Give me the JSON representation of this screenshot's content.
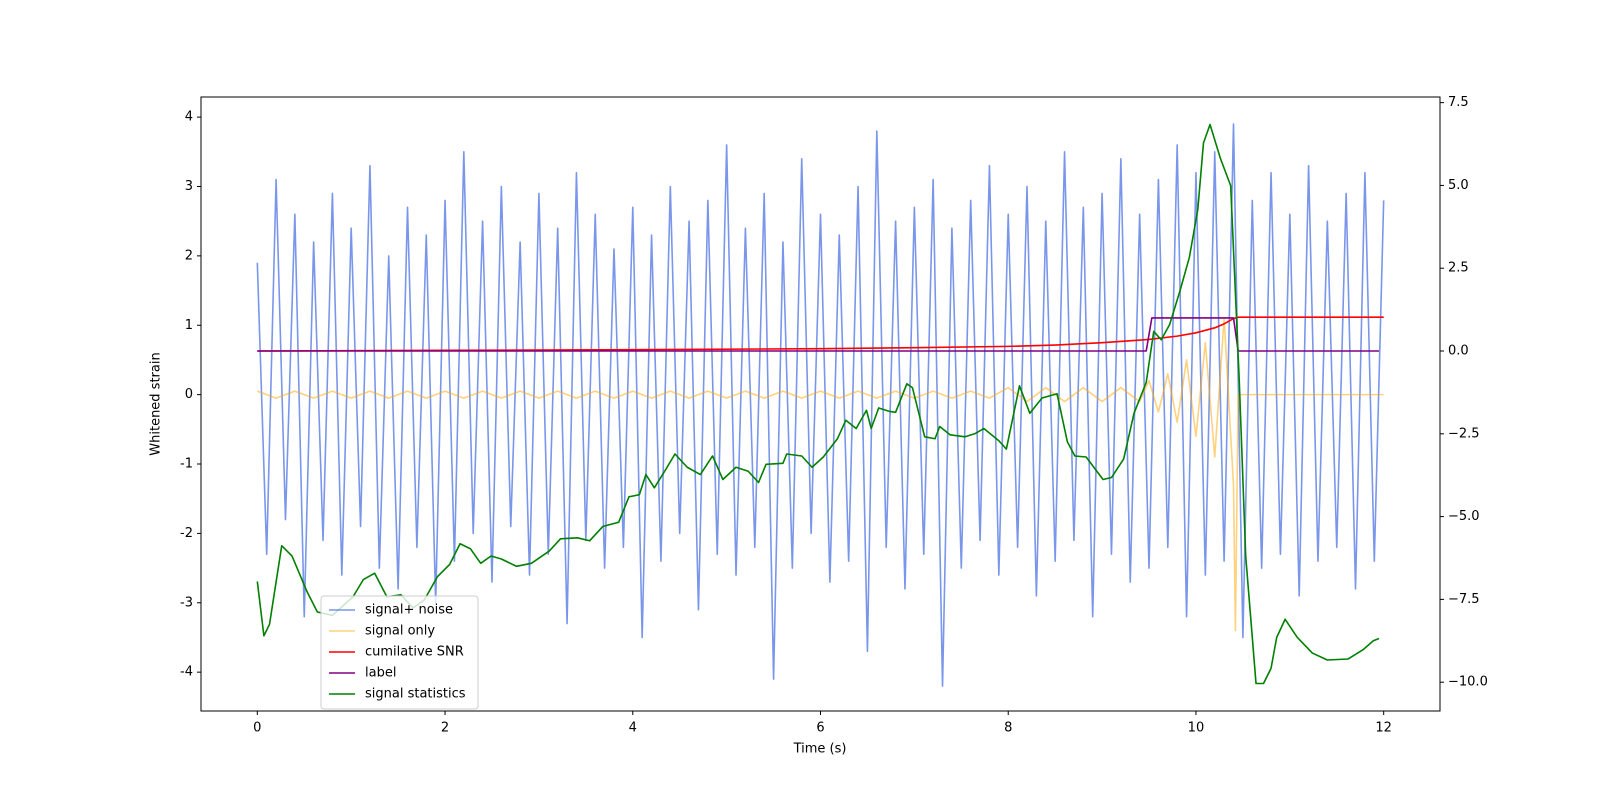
{
  "chart_data": {
    "type": "line",
    "xlabel": "Time (s)",
    "ylabel": "Whitened strain",
    "xlim": [
      -0.6,
      12.6
    ],
    "xticks": [
      0,
      2,
      4,
      6,
      8,
      10,
      12
    ],
    "ylim": [
      -4.56,
      4.29
    ],
    "yticks": [
      -4,
      -3,
      -2,
      -1,
      0,
      1,
      2,
      3,
      4
    ],
    "y2lim": [
      -10.87,
      7.67
    ],
    "y2ticks": [
      {
        "value": -10,
        "label": "−10.0"
      },
      {
        "value": -7.5,
        "label": "−7.5"
      },
      {
        "value": -5,
        "label": "−5.0"
      },
      {
        "value": -2.5,
        "label": "−2.5"
      },
      {
        "value": 0,
        "label": "0.0"
      },
      {
        "value": 2.5,
        "label": "2.5"
      },
      {
        "value": 5,
        "label": "5.0"
      },
      {
        "value": 7.5,
        "label": "7.5"
      }
    ],
    "legend": "lower left",
    "series": [
      {
        "name": "signal+ noise",
        "color": "#4169e1",
        "opacity": 0.7,
        "x": [
          0,
          0.1,
          0.2,
          0.3,
          0.4,
          0.5,
          0.6,
          0.7,
          0.8,
          0.9,
          1,
          1.1,
          1.2,
          1.3,
          1.4,
          1.5,
          1.6,
          1.7,
          1.8,
          1.9,
          2,
          2.1,
          2.2,
          2.3,
          2.4,
          2.5,
          2.6,
          2.7,
          2.8,
          2.9,
          3,
          3.1,
          3.2,
          3.3,
          3.4,
          3.5,
          3.6,
          3.7,
          3.8,
          3.9,
          4,
          4.1,
          4.2,
          4.3,
          4.4,
          4.5,
          4.6,
          4.7,
          4.8,
          4.9,
          5,
          5.1,
          5.2,
          5.3,
          5.4,
          5.5,
          5.6,
          5.7,
          5.8,
          5.9,
          6,
          6.1,
          6.2,
          6.3,
          6.4,
          6.5,
          6.6,
          6.7,
          6.8,
          6.9,
          7,
          7.1,
          7.2,
          7.3,
          7.4,
          7.5,
          7.6,
          7.7,
          7.8,
          7.9,
          8,
          8.1,
          8.2,
          8.3,
          8.4,
          8.5,
          8.6,
          8.7,
          8.8,
          8.9,
          9,
          9.1,
          9.2,
          9.3,
          9.4,
          9.5,
          9.6,
          9.7,
          9.8,
          9.9,
          10,
          10.1,
          10.2,
          10.3,
          10.4,
          10.5,
          10.6,
          10.7,
          10.8,
          10.9,
          11,
          11.1,
          11.2,
          11.3,
          11.4,
          11.5,
          11.6,
          11.7,
          11.8,
          11.9,
          12
        ],
        "values": [
          1.9,
          -2.3,
          3.1,
          -1.8,
          2.6,
          -3.2,
          2.2,
          -2.1,
          2.9,
          -2.6,
          2.4,
          -1.9,
          3.3,
          -2.5,
          2.0,
          -2.8,
          2.7,
          -2.2,
          2.3,
          -3.0,
          2.8,
          -2.4,
          3.5,
          -2.0,
          2.5,
          -2.7,
          3.0,
          -1.9,
          2.2,
          -2.6,
          2.9,
          -2.3,
          2.4,
          -3.3,
          3.2,
          -2.1,
          2.6,
          -2.5,
          2.1,
          -2.2,
          2.7,
          -3.5,
          2.3,
          -2.4,
          3.0,
          -2.0,
          2.5,
          -3.1,
          2.8,
          -2.3,
          3.6,
          -2.6,
          2.4,
          -2.2,
          2.9,
          -4.1,
          2.2,
          -2.5,
          3.4,
          -2.0,
          2.6,
          -2.7,
          2.3,
          -2.4,
          3.0,
          -3.7,
          3.8,
          -2.2,
          2.5,
          -2.8,
          2.7,
          -2.3,
          3.1,
          -4.2,
          2.4,
          -2.5,
          2.8,
          -2.1,
          3.3,
          -2.6,
          2.6,
          -2.2,
          3.0,
          -2.9,
          2.5,
          -2.4,
          3.5,
          -2.1,
          2.7,
          -3.2,
          2.9,
          -2.3,
          3.4,
          -2.7,
          2.6,
          -2.5,
          3.1,
          -2.2,
          3.6,
          -3.2,
          3.2,
          -2.6,
          3.5,
          -2.4,
          3.9,
          -3.5,
          2.8,
          -2.5,
          3.2,
          -2.3,
          2.6,
          -2.9,
          3.3,
          -2.4,
          2.5,
          -2.2,
          2.9,
          -2.8,
          3.2,
          -2.4,
          2.8
        ]
      },
      {
        "name": "signal only",
        "color": "#ffa500",
        "opacity": 0.5,
        "x": [
          0,
          0.2,
          0.4,
          0.6,
          0.8,
          1,
          1.2,
          1.4,
          1.6,
          1.8,
          2,
          2.2,
          2.4,
          2.6,
          2.8,
          3,
          3.2,
          3.4,
          3.6,
          3.8,
          4,
          4.2,
          4.4,
          4.6,
          4.8,
          5,
          5.2,
          5.4,
          5.6,
          5.8,
          6,
          6.2,
          6.4,
          6.6,
          6.8,
          7,
          7.2,
          7.4,
          7.6,
          7.8,
          8,
          8.2,
          8.4,
          8.6,
          8.8,
          9,
          9.2,
          9.4,
          9.5,
          9.6,
          9.7,
          9.8,
          9.9,
          10,
          10.1,
          10.2,
          10.3,
          10.4,
          10.42,
          10.45,
          12
        ],
        "values": [
          0.05,
          -0.05,
          0.05,
          -0.05,
          0.05,
          -0.05,
          0.05,
          -0.05,
          0.05,
          -0.05,
          0.05,
          -0.05,
          0.05,
          -0.05,
          0.05,
          -0.05,
          0.05,
          -0.05,
          0.05,
          -0.05,
          0.05,
          -0.05,
          0.05,
          -0.05,
          0.05,
          -0.05,
          0.05,
          -0.05,
          0.05,
          -0.05,
          0.05,
          -0.05,
          0.05,
          -0.05,
          0.05,
          -0.05,
          0.05,
          -0.05,
          0.05,
          -0.05,
          0.1,
          -0.1,
          0.1,
          -0.1,
          0.1,
          -0.1,
          0.1,
          -0.1,
          0.2,
          -0.25,
          0.3,
          -0.4,
          0.5,
          -0.6,
          0.75,
          -0.9,
          1.1,
          -1.3,
          -3.4,
          0,
          0
        ]
      },
      {
        "name": "cumilative SNR",
        "color": "#ff0000",
        "axis": "y2",
        "x": [
          0,
          2,
          4,
          6,
          7,
          8,
          8.5,
          9,
          9.5,
          9.8,
          10,
          10.2,
          10.3,
          10.4,
          10.45,
          12
        ],
        "values": [
          0,
          0.02,
          0.04,
          0.07,
          0.1,
          0.14,
          0.18,
          0.25,
          0.35,
          0.45,
          0.55,
          0.7,
          0.82,
          0.98,
          1.02,
          1.02
        ]
      },
      {
        "name": "label",
        "color": "#800080",
        "axis": "y2",
        "x": [
          0,
          9.47,
          9.53,
          10.4,
          10.45,
          11.95
        ],
        "values": [
          0,
          0,
          1,
          1,
          0,
          0
        ]
      },
      {
        "name": "signal statistics",
        "color": "#008000",
        "axis": "y2",
        "x": [
          0,
          0.07,
          0.13,
          0.26,
          0.37,
          0.53,
          0.64,
          0.8,
          1.02,
          1.13,
          1.25,
          1.38,
          1.53,
          1.66,
          1.78,
          1.92,
          2.05,
          2.16,
          2.27,
          2.38,
          2.49,
          2.6,
          2.76,
          2.92,
          3.11,
          3.23,
          3.41,
          3.54,
          3.68,
          3.85,
          3.96,
          4.07,
          4.14,
          4.23,
          4.34,
          4.45,
          4.58,
          4.72,
          4.85,
          4.96,
          5.1,
          5.23,
          5.34,
          5.42,
          5.6,
          5.64,
          5.8,
          5.91,
          6.03,
          6.18,
          6.27,
          6.38,
          6.49,
          6.54,
          6.62,
          6.73,
          6.8,
          6.92,
          6.98,
          7.11,
          7.22,
          7.27,
          7.38,
          7.54,
          7.65,
          7.74,
          7.9,
          7.98,
          8.12,
          8.23,
          8.36,
          8.52,
          8.63,
          8.71,
          8.83,
          9.01,
          9.1,
          9.23,
          9.34,
          9.47,
          9.55,
          9.63,
          9.72,
          9.83,
          9.93,
          10.02,
          10.08,
          10.15,
          10.26,
          10.37,
          10.46,
          10.53,
          10.64,
          10.72,
          10.8,
          10.86,
          10.95,
          11.08,
          11.24,
          11.4,
          11.62,
          11.78,
          11.89,
          11.95
        ],
        "values": [
          -6.96,
          -8.6,
          -8.25,
          -5.88,
          -6.19,
          -7.27,
          -7.88,
          -7.98,
          -7.42,
          -6.9,
          -6.71,
          -7.42,
          -7.36,
          -7.76,
          -7.51,
          -6.81,
          -6.44,
          -5.82,
          -5.97,
          -6.41,
          -6.19,
          -6.28,
          -6.5,
          -6.41,
          -6.04,
          -5.67,
          -5.64,
          -5.73,
          -5.3,
          -5.17,
          -4.4,
          -4.34,
          -3.73,
          -4.13,
          -3.63,
          -3.11,
          -3.51,
          -3.73,
          -3.17,
          -3.88,
          -3.51,
          -3.63,
          -3.97,
          -3.42,
          -3.39,
          -3.11,
          -3.17,
          -3.51,
          -3.2,
          -2.65,
          -2.09,
          -2.34,
          -1.79,
          -2.34,
          -1.72,
          -1.82,
          -1.85,
          -0.99,
          -1.11,
          -2.59,
          -2.65,
          -2.28,
          -2.53,
          -2.59,
          -2.49,
          -2.34,
          -2.71,
          -2.96,
          -1.05,
          -1.88,
          -1.42,
          -1.29,
          -2.74,
          -3.17,
          -3.2,
          -3.88,
          -3.82,
          -3.26,
          -1.88,
          -0.95,
          0.59,
          0.34,
          0.8,
          1.82,
          2.83,
          4.28,
          6.28,
          6.84,
          5.82,
          4.99,
          -0.8,
          -6.19,
          -10.04,
          -10.04,
          -9.58,
          -8.65,
          -8.1,
          -8.65,
          -9.12,
          -9.33,
          -9.3,
          -9.02,
          -8.75,
          -8.68
        ]
      }
    ]
  }
}
